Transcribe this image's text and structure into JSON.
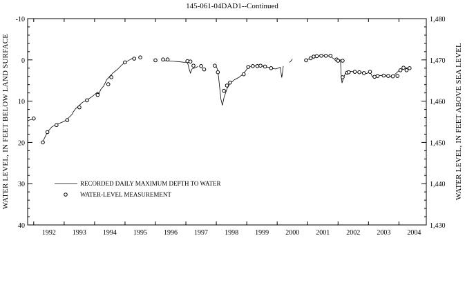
{
  "chart_data": {
    "type": "line",
    "title": "145-061-04DAD1--Continued",
    "ylabel_left": "WATER LEVEL, IN FEET BELOW LAND SURFACE",
    "ylabel_right": "WATER LEVEL, IN FEET ABOVE SEA LEVEL",
    "xlabel": "",
    "x_ticks": [
      "1992",
      "1993",
      "1994",
      "1995",
      "1996",
      "1997",
      "1998",
      "1999",
      "2000",
      "2001",
      "2002",
      "2003",
      "2004"
    ],
    "xlim": [
      1991.8,
      2004.9
    ],
    "ylim_left": [
      -10,
      40
    ],
    "y_ticks_left": [
      "-10",
      "0",
      "10",
      "20",
      "30",
      "40"
    ],
    "y_ticks_right": [
      "1,480",
      "1,470",
      "1,460",
      "1,450",
      "1,440",
      "1,430"
    ],
    "legend": {
      "placement": "lower-left",
      "entries": [
        {
          "label": "RECORDED DAILY MAXIMUM DEPTH TO WATER",
          "kind": "line"
        },
        {
          "label": "WATER-LEVEL MEASUREMENT",
          "kind": "marker"
        }
      ]
    },
    "series": [
      {
        "kind": "line",
        "segments": [
          [
            [
              1991.8,
              14.8
            ],
            [
              1991.85,
              14.6
            ],
            [
              1991.9,
              14.5
            ],
            [
              1991.95,
              14.4
            ]
          ],
          [
            [
              1992.3,
              19.8
            ],
            [
              1992.45,
              17.5
            ],
            [
              1992.6,
              16.2
            ],
            [
              1992.8,
              15.5
            ],
            [
              1993.0,
              14.9
            ],
            [
              1993.15,
              14.0
            ],
            [
              1993.25,
              13.3
            ],
            [
              1993.3,
              12.6
            ],
            [
              1993.38,
              11.8
            ],
            [
              1993.5,
              11.0
            ],
            [
              1993.6,
              10.3
            ],
            [
              1993.75,
              9.7
            ],
            [
              1993.9,
              9.0
            ],
            [
              1994.0,
              8.4
            ],
            [
              1994.1,
              7.8
            ],
            [
              1994.15,
              8.2
            ],
            [
              1994.2,
              7.2
            ],
            [
              1994.3,
              6.3
            ],
            [
              1994.4,
              4.8
            ],
            [
              1994.5,
              4.0
            ],
            [
              1994.6,
              3.2
            ],
            [
              1994.75,
              2.3
            ],
            [
              1994.9,
              1.2
            ],
            [
              1995.0,
              0.6
            ],
            [
              1995.15,
              0.0
            ],
            [
              1995.25,
              -0.4
            ],
            [
              1995.35,
              -0.6
            ]
          ],
          [
            [
              1996.2,
              0.2
            ],
            [
              1996.4,
              0.2
            ],
            [
              1996.55,
              0.3
            ],
            [
              1996.7,
              0.4
            ],
            [
              1996.85,
              0.5
            ],
            [
              1996.95,
              0.6
            ],
            [
              1997.05,
              0.5
            ],
            [
              1997.1,
              2.0
            ],
            [
              1997.15,
              3.2
            ],
            [
              1997.2,
              2.2
            ],
            [
              1997.3,
              1.9
            ],
            [
              1997.4,
              1.6
            ]
          ],
          [
            [
              1997.9,
              1.3
            ],
            [
              1998.0,
              1.6
            ],
            [
              1998.05,
              2.5
            ],
            [
              1998.1,
              6.0
            ],
            [
              1998.15,
              9.5
            ],
            [
              1998.2,
              11.0
            ],
            [
              1998.25,
              9.2
            ],
            [
              1998.35,
              7.0
            ],
            [
              1998.45,
              5.7
            ],
            [
              1998.6,
              4.8
            ],
            [
              1998.75,
              4.2
            ],
            [
              1998.85,
              3.6
            ],
            [
              1998.95,
              2.8
            ],
            [
              1999.05,
              1.8
            ],
            [
              1999.2,
              1.5
            ],
            [
              1999.4,
              1.4
            ],
            [
              1999.6,
              1.6
            ],
            [
              1999.8,
              2.0
            ],
            [
              1999.95,
              2.2
            ],
            [
              2000.1,
              1.8
            ],
            [
              2000.15,
              4.3
            ],
            [
              2000.18,
              2.8
            ],
            [
              2000.2,
              1.5
            ]
          ],
          [
            [
              2000.4,
              0.6
            ],
            [
              2000.45,
              0.3
            ],
            [
              2000.5,
              -0.2
            ]
          ],
          [
            [
              2000.95,
              0.1
            ],
            [
              2001.1,
              -0.4
            ],
            [
              2001.25,
              -0.8
            ],
            [
              2001.45,
              -1.0
            ],
            [
              2001.6,
              -1.0
            ],
            [
              2001.75,
              -0.9
            ],
            [
              2001.85,
              -0.3
            ],
            [
              2002.0,
              0.0
            ],
            [
              2002.08,
              0.0
            ],
            [
              2002.1,
              3.5
            ],
            [
              2002.13,
              5.6
            ],
            [
              2002.17,
              4.5
            ],
            [
              2002.25,
              3.1
            ],
            [
              2002.4,
              2.8
            ],
            [
              2002.6,
              2.9
            ],
            [
              2002.8,
              3.2
            ],
            [
              2002.95,
              3.3
            ],
            [
              2003.05,
              2.8
            ],
            [
              2003.12,
              4.0
            ],
            [
              2003.2,
              3.9
            ],
            [
              2003.4,
              3.8
            ],
            [
              2003.6,
              3.9
            ],
            [
              2003.8,
              4.0
            ],
            [
              2003.9,
              3.3
            ],
            [
              2004.0,
              2.6
            ],
            [
              2004.1,
              2.3
            ],
            [
              2004.2,
              2.0
            ],
            [
              2004.3,
              1.9
            ]
          ]
        ]
      },
      {
        "kind": "marker",
        "points": [
          [
            1992.0,
            14.2
          ],
          [
            1992.3,
            20.0
          ],
          [
            1992.45,
            17.5
          ],
          [
            1992.75,
            15.8
          ],
          [
            1993.1,
            14.6
          ],
          [
            1993.5,
            11.5
          ],
          [
            1993.75,
            9.8
          ],
          [
            1994.1,
            8.5
          ],
          [
            1994.45,
            5.9
          ],
          [
            1994.55,
            4.2
          ],
          [
            1995.0,
            0.6
          ],
          [
            1995.3,
            -0.3
          ],
          [
            1995.5,
            -0.6
          ],
          [
            1996.0,
            0.1
          ],
          [
            1996.25,
            -0.1
          ],
          [
            1996.4,
            -0.1
          ],
          [
            1997.05,
            0.3
          ],
          [
            1997.15,
            0.4
          ],
          [
            1997.25,
            1.4
          ],
          [
            1997.5,
            1.5
          ],
          [
            1997.6,
            2.3
          ],
          [
            1997.95,
            1.4
          ],
          [
            1998.05,
            3.0
          ],
          [
            1998.25,
            7.5
          ],
          [
            1998.35,
            6.2
          ],
          [
            1998.45,
            5.5
          ],
          [
            1998.9,
            3.5
          ],
          [
            1999.05,
            1.7
          ],
          [
            1999.2,
            1.5
          ],
          [
            1999.35,
            1.5
          ],
          [
            1999.45,
            1.4
          ],
          [
            1999.6,
            1.6
          ],
          [
            1999.8,
            2.0
          ],
          [
            2000.95,
            0.1
          ],
          [
            2001.1,
            -0.4
          ],
          [
            2001.2,
            -0.8
          ],
          [
            2001.3,
            -0.9
          ],
          [
            2001.45,
            -1.0
          ],
          [
            2001.6,
            -1.0
          ],
          [
            2001.75,
            -1.0
          ],
          [
            2001.95,
            -0.1
          ],
          [
            2002.0,
            0.2
          ],
          [
            2002.15,
            0.2
          ],
          [
            2002.15,
            4.2
          ],
          [
            2002.3,
            3.1
          ],
          [
            2002.35,
            3.0
          ],
          [
            2002.55,
            2.9
          ],
          [
            2002.7,
            3.0
          ],
          [
            2002.85,
            3.2
          ],
          [
            2003.05,
            2.9
          ],
          [
            2003.2,
            4.1
          ],
          [
            2003.3,
            3.9
          ],
          [
            2003.5,
            3.8
          ],
          [
            2003.65,
            3.9
          ],
          [
            2003.8,
            4.0
          ],
          [
            2003.95,
            3.9
          ],
          [
            2004.05,
            2.5
          ],
          [
            2004.15,
            1.9
          ],
          [
            2004.25,
            2.5
          ],
          [
            2004.35,
            2.0
          ]
        ]
      }
    ]
  }
}
